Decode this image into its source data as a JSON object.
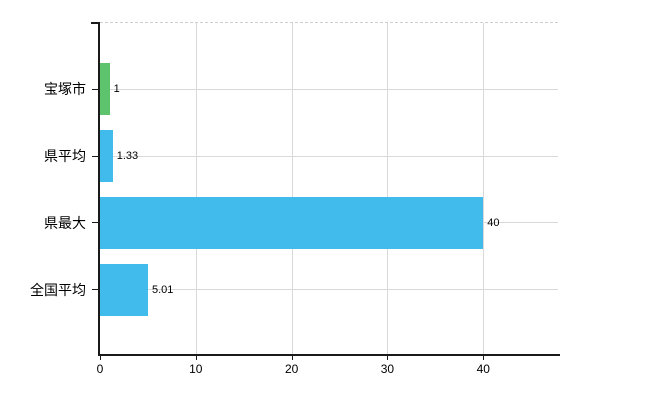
{
  "chart_data": {
    "type": "bar",
    "orientation": "horizontal",
    "title": "",
    "categories": [
      "宝塚市",
      "県平均",
      "県最大",
      "全国平均"
    ],
    "values": [
      1,
      1.33,
      40,
      5.01
    ],
    "value_labels": [
      "1",
      "1.33",
      "40",
      "5.01"
    ],
    "bar_colors": [
      "#5dc46d",
      "#41bbeb",
      "#41bbeb",
      "#41bbeb"
    ],
    "x_ticks": [
      0,
      10,
      20,
      30,
      40
    ],
    "x_tick_labels": [
      "0",
      "10",
      "20",
      "30",
      "40"
    ],
    "xlim": [
      0,
      47.8
    ],
    "xlabel": "",
    "ylabel": "",
    "grid": true,
    "legend": false,
    "plot_border_top": "dashed"
  },
  "colors": {
    "green_bar": "#5dc46d",
    "blue_bar": "#41bbeb",
    "gridline": "#d9d9d9",
    "dashed_border": "#cfcfcf",
    "axis": "#1a1a1a",
    "text": "#000000",
    "background": "#ffffff"
  }
}
